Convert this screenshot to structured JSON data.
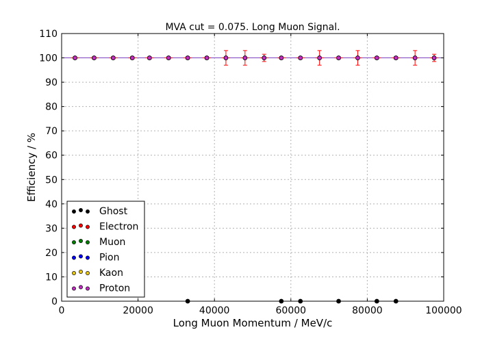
{
  "chart_data": {
    "type": "scatter",
    "title": "MVA cut = 0.075. Long Muon Signal.",
    "xlabel": "Long Muon Momentum / MeV/c",
    "ylabel": "Efficiency / %",
    "xlim": [
      0,
      100000
    ],
    "ylim": [
      0,
      110
    ],
    "xticks": [
      0,
      20000,
      40000,
      60000,
      80000,
      100000
    ],
    "xtick_labels": [
      "0",
      "20000",
      "40000",
      "60000",
      "80000",
      "100000"
    ],
    "yticks": [
      0,
      10,
      20,
      30,
      40,
      50,
      60,
      70,
      80,
      90,
      100,
      110
    ],
    "ytick_labels": [
      "0",
      "10",
      "20",
      "30",
      "40",
      "50",
      "60",
      "70",
      "80",
      "90",
      "100",
      "110"
    ],
    "grid": true,
    "legend_position": "lower-left",
    "reference_line": {
      "y": 100,
      "color": "#7a3fbf"
    },
    "series": [
      {
        "name": "Ghost",
        "color": "#000000",
        "points": [
          {
            "x": 33000,
            "y": 0
          },
          {
            "x": 57500,
            "y": 0
          },
          {
            "x": 62500,
            "y": 0
          },
          {
            "x": 72500,
            "y": 0
          },
          {
            "x": 82500,
            "y": 0
          },
          {
            "x": 87500,
            "y": 0
          }
        ]
      },
      {
        "name": "Electron",
        "color": "#ff0000",
        "points": []
      },
      {
        "name": "Muon",
        "color": "#008000",
        "points": []
      },
      {
        "name": "Pion",
        "color": "#0000ff",
        "points": []
      },
      {
        "name": "Kaon",
        "color": "#e6c619",
        "points": []
      },
      {
        "name": "Proton",
        "color": "#c02bc0",
        "points": [
          {
            "x": 3500,
            "y": 100,
            "err": 0.5
          },
          {
            "x": 8500,
            "y": 100,
            "err": 0.5
          },
          {
            "x": 13500,
            "y": 100,
            "err": 0.5
          },
          {
            "x": 18500,
            "y": 100,
            "err": 0.5
          },
          {
            "x": 23000,
            "y": 100,
            "err": 0.5
          },
          {
            "x": 28000,
            "y": 100,
            "err": 0.5
          },
          {
            "x": 33000,
            "y": 100,
            "err": 0.5
          },
          {
            "x": 38000,
            "y": 100,
            "err": 0.5
          },
          {
            "x": 43000,
            "y": 100,
            "err": 3
          },
          {
            "x": 48000,
            "y": 100,
            "err": 3
          },
          {
            "x": 53000,
            "y": 100,
            "err": 1.5
          },
          {
            "x": 57500,
            "y": 100,
            "err": 0.5
          },
          {
            "x": 62500,
            "y": 100,
            "err": 0.5
          },
          {
            "x": 67500,
            "y": 100,
            "err": 3
          },
          {
            "x": 72500,
            "y": 100,
            "err": 0.5
          },
          {
            "x": 77500,
            "y": 100,
            "err": 3
          },
          {
            "x": 82500,
            "y": 100,
            "err": 0.5
          },
          {
            "x": 87500,
            "y": 100,
            "err": 0.5
          },
          {
            "x": 92500,
            "y": 100,
            "err": 3
          },
          {
            "x": 97500,
            "y": 100,
            "err": 1.5
          }
        ]
      }
    ]
  }
}
